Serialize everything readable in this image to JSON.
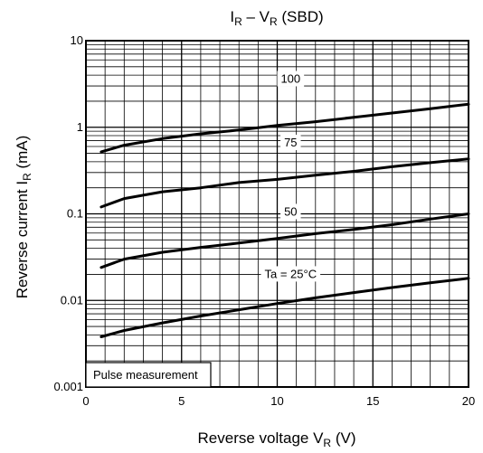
{
  "chart_data": {
    "type": "line",
    "title": {
      "main": "I",
      "sub1": "R",
      "mid": " – V",
      "sub2": "R",
      "end": " (SBD)"
    },
    "xlabel": {
      "main": "Reverse voltage   V",
      "sub": "R",
      "unit": "   (V)"
    },
    "ylabel": {
      "main": "Reverse current   I",
      "sub": "R",
      "unit": "   (mA)"
    },
    "xlim": [
      0,
      20
    ],
    "ylim": [
      0.001,
      10
    ],
    "y_scale": "log",
    "grid": true,
    "x_ticks": [
      {
        "value": 0,
        "label": "0"
      },
      {
        "value": 5,
        "label": "5"
      },
      {
        "value": 10,
        "label": "10"
      },
      {
        "value": 15,
        "label": "15"
      },
      {
        "value": 20,
        "label": "20"
      }
    ],
    "y_ticks": [
      {
        "value": 0.001,
        "label": "0.001"
      },
      {
        "value": 0.01,
        "label": "0.01"
      },
      {
        "value": 0.1,
        "label": "0.1"
      },
      {
        "value": 1,
        "label": "1"
      },
      {
        "value": 10,
        "label": "10"
      }
    ],
    "annotation": "Pulse measurement",
    "series": [
      {
        "name": "100",
        "label_x": 10.7,
        "label_y": 3.6,
        "x": [
          0.8,
          2,
          4,
          6,
          8,
          10,
          12,
          14,
          16,
          18,
          20
        ],
        "y": [
          0.52,
          0.62,
          0.74,
          0.84,
          0.93,
          1.05,
          1.16,
          1.3,
          1.46,
          1.64,
          1.85
        ]
      },
      {
        "name": "75",
        "label_x": 10.7,
        "label_y": 0.66,
        "x": [
          0.8,
          2,
          4,
          6,
          8,
          10,
          12,
          14,
          16,
          18,
          20
        ],
        "y": [
          0.12,
          0.15,
          0.18,
          0.2,
          0.23,
          0.25,
          0.28,
          0.31,
          0.35,
          0.39,
          0.43
        ]
      },
      {
        "name": "50",
        "label_x": 10.7,
        "label_y": 0.105,
        "x": [
          0.8,
          2,
          4,
          6,
          8,
          10,
          12,
          14,
          16,
          18,
          20
        ],
        "y": [
          0.024,
          0.03,
          0.036,
          0.041,
          0.046,
          0.052,
          0.059,
          0.066,
          0.075,
          0.087,
          0.1
        ]
      },
      {
        "name": "Ta = 25°C",
        "label_x": 10.7,
        "label_y": 0.02,
        "x": [
          0.8,
          2,
          4,
          6,
          8,
          10,
          12,
          14,
          16,
          18,
          20
        ],
        "y": [
          0.0038,
          0.0045,
          0.0055,
          0.0066,
          0.0078,
          0.0092,
          0.0107,
          0.0123,
          0.0141,
          0.016,
          0.018
        ]
      }
    ]
  }
}
